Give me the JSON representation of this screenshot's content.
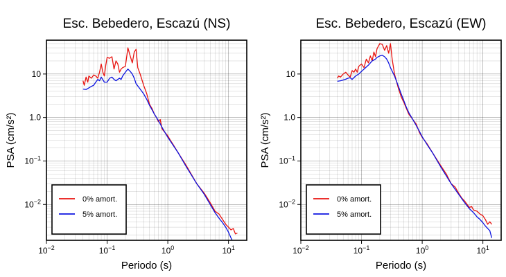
{
  "chart_data": [
    {
      "type": "line",
      "title": "Esc. Bebedero, Escazú (NS)",
      "xlabel": "Periodo (s)",
      "ylabel": "PSA (cm/s²)",
      "xscale": "log",
      "yscale": "log",
      "xlim": [
        0.01,
        20
      ],
      "ylim": [
        0.0015,
        60
      ],
      "grid": true,
      "legend_position": "bottom-left",
      "x_ticks": [
        {
          "value": 0.01,
          "base": "10",
          "exp": "−2"
        },
        {
          "value": 0.1,
          "base": "10",
          "exp": "−1"
        },
        {
          "value": 1,
          "base": "10",
          "exp": "0"
        },
        {
          "value": 10,
          "base": "10",
          "exp": "1"
        }
      ],
      "y_ticks": [
        {
          "value": 0.01,
          "base": "10",
          "exp": "−2"
        },
        {
          "value": 0.1,
          "base": "10",
          "exp": "−1"
        },
        {
          "value": 1,
          "base": "1.0",
          "exp": ""
        },
        {
          "value": 10,
          "base": "10",
          "exp": ""
        }
      ],
      "series": [
        {
          "name": "0% amort.",
          "color": "#e8130f",
          "points": [
            [
              0.04,
              7.0
            ],
            [
              0.042,
              5.5
            ],
            [
              0.045,
              8.5
            ],
            [
              0.048,
              6.5
            ],
            [
              0.05,
              9.0
            ],
            [
              0.055,
              8.0
            ],
            [
              0.06,
              9.5
            ],
            [
              0.065,
              9.0
            ],
            [
              0.07,
              8.0
            ],
            [
              0.075,
              11.0
            ],
            [
              0.08,
              17.0
            ],
            [
              0.085,
              11.0
            ],
            [
              0.09,
              9.0
            ],
            [
              0.095,
              16.0
            ],
            [
              0.1,
              24.0
            ],
            [
              0.11,
              23.0
            ],
            [
              0.12,
              25.0
            ],
            [
              0.13,
              13.0
            ],
            [
              0.14,
              20.0
            ],
            [
              0.15,
              17.0
            ],
            [
              0.16,
              11.0
            ],
            [
              0.17,
              13.0
            ],
            [
              0.18,
              14.0
            ],
            [
              0.2,
              15.0
            ],
            [
              0.22,
              40.0
            ],
            [
              0.24,
              26.0
            ],
            [
              0.26,
              18.0
            ],
            [
              0.28,
              32.0
            ],
            [
              0.3,
              37.0
            ],
            [
              0.32,
              14.0
            ],
            [
              0.35,
              10.0
            ],
            [
              0.4,
              5.5
            ],
            [
              0.45,
              3.5
            ],
            [
              0.5,
              2.0
            ],
            [
              0.55,
              1.6
            ],
            [
              0.6,
              1.2
            ],
            [
              0.65,
              1.0
            ],
            [
              0.7,
              0.8
            ],
            [
              0.75,
              0.9
            ],
            [
              0.8,
              0.55
            ],
            [
              0.9,
              0.45
            ],
            [
              1.0,
              0.38
            ],
            [
              1.1,
              0.3
            ],
            [
              1.2,
              0.25
            ],
            [
              1.5,
              0.15
            ],
            [
              2.0,
              0.08
            ],
            [
              3.0,
              0.03
            ],
            [
              4.0,
              0.018
            ],
            [
              5.0,
              0.011
            ],
            [
              6.0,
              0.007
            ],
            [
              7.0,
              0.006
            ],
            [
              8.0,
              0.0045
            ],
            [
              9.0,
              0.0035
            ],
            [
              10.0,
              0.003
            ],
            [
              11.0,
              0.0026
            ],
            [
              12.0,
              0.0028
            ],
            [
              13.0,
              0.0021
            ],
            [
              14.0,
              0.0022
            ]
          ]
        },
        {
          "name": "5% amort.",
          "color": "#0b12e0",
          "points": [
            [
              0.04,
              4.5
            ],
            [
              0.045,
              4.4
            ],
            [
              0.05,
              4.8
            ],
            [
              0.055,
              5.2
            ],
            [
              0.06,
              5.5
            ],
            [
              0.065,
              6.5
            ],
            [
              0.07,
              7.5
            ],
            [
              0.075,
              7.0
            ],
            [
              0.08,
              8.5
            ],
            [
              0.09,
              6.5
            ],
            [
              0.1,
              6.5
            ],
            [
              0.11,
              8.0
            ],
            [
              0.12,
              8.5
            ],
            [
              0.13,
              7.5
            ],
            [
              0.14,
              7.0
            ],
            [
              0.15,
              7.5
            ],
            [
              0.16,
              8.0
            ],
            [
              0.17,
              7.5
            ],
            [
              0.18,
              9.0
            ],
            [
              0.2,
              11.0
            ],
            [
              0.22,
              13.0
            ],
            [
              0.24,
              11.5
            ],
            [
              0.26,
              10.0
            ],
            [
              0.28,
              8.0
            ],
            [
              0.3,
              6.0
            ],
            [
              0.35,
              4.5
            ],
            [
              0.4,
              3.5
            ],
            [
              0.45,
              2.6
            ],
            [
              0.5,
              1.9
            ],
            [
              0.55,
              1.5
            ],
            [
              0.6,
              1.2
            ],
            [
              0.7,
              0.85
            ],
            [
              0.8,
              0.6
            ],
            [
              0.9,
              0.45
            ],
            [
              1.0,
              0.35
            ],
            [
              1.2,
              0.24
            ],
            [
              1.5,
              0.15
            ],
            [
              2.0,
              0.075
            ],
            [
              3.0,
              0.03
            ],
            [
              4.0,
              0.017
            ],
            [
              5.0,
              0.01
            ],
            [
              6.0,
              0.0065
            ],
            [
              7.0,
              0.0048
            ],
            [
              8.0,
              0.0038
            ],
            [
              9.0,
              0.003
            ],
            [
              10.0,
              0.0023
            ],
            [
              11.0,
              0.0017
            ],
            [
              11.5,
              0.0015
            ]
          ]
        }
      ]
    },
    {
      "type": "line",
      "title": "Esc. Bebedero, Escazú (EW)",
      "xlabel": "Periodo (s)",
      "ylabel": "PSA (cm/s²)",
      "xscale": "log",
      "yscale": "log",
      "xlim": [
        0.01,
        20
      ],
      "ylim": [
        0.0015,
        60
      ],
      "grid": true,
      "legend_position": "bottom-left",
      "x_ticks": [
        {
          "value": 0.01,
          "base": "10",
          "exp": "−2"
        },
        {
          "value": 0.1,
          "base": "10",
          "exp": "−1"
        },
        {
          "value": 1,
          "base": "10",
          "exp": "0"
        },
        {
          "value": 10,
          "base": "10",
          "exp": "1"
        }
      ],
      "y_ticks": [
        {
          "value": 0.01,
          "base": "10",
          "exp": "−2"
        },
        {
          "value": 0.1,
          "base": "10",
          "exp": "−1"
        },
        {
          "value": 1,
          "base": "1.0",
          "exp": ""
        },
        {
          "value": 10,
          "base": "10",
          "exp": ""
        }
      ],
      "series": [
        {
          "name": "0% amort.",
          "color": "#e8130f",
          "points": [
            [
              0.04,
              8.0
            ],
            [
              0.042,
              9.0
            ],
            [
              0.045,
              8.5
            ],
            [
              0.05,
              10.0
            ],
            [
              0.055,
              11.0
            ],
            [
              0.06,
              9.5
            ],
            [
              0.065,
              8.5
            ],
            [
              0.07,
              12.0
            ],
            [
              0.075,
              11.0
            ],
            [
              0.08,
              13.0
            ],
            [
              0.085,
              11.0
            ],
            [
              0.09,
              15.0
            ],
            [
              0.1,
              17.0
            ],
            [
              0.11,
              14.0
            ],
            [
              0.12,
              22.0
            ],
            [
              0.13,
              18.0
            ],
            [
              0.14,
              26.0
            ],
            [
              0.15,
              20.0
            ],
            [
              0.16,
              32.0
            ],
            [
              0.17,
              25.0
            ],
            [
              0.18,
              38.0
            ],
            [
              0.2,
              50.0
            ],
            [
              0.22,
              48.0
            ],
            [
              0.24,
              35.0
            ],
            [
              0.26,
              45.0
            ],
            [
              0.28,
              30.0
            ],
            [
              0.3,
              50.0
            ],
            [
              0.32,
              22.0
            ],
            [
              0.35,
              10.0
            ],
            [
              0.4,
              5.0
            ],
            [
              0.45,
              3.0
            ],
            [
              0.5,
              2.2
            ],
            [
              0.55,
              1.6
            ],
            [
              0.6,
              1.2
            ],
            [
              0.7,
              0.9
            ],
            [
              0.8,
              0.7
            ],
            [
              0.9,
              0.45
            ],
            [
              1.0,
              0.35
            ],
            [
              1.2,
              0.25
            ],
            [
              1.5,
              0.15
            ],
            [
              2.0,
              0.08
            ],
            [
              2.5,
              0.05
            ],
            [
              3.0,
              0.03
            ],
            [
              3.5,
              0.025
            ],
            [
              4.0,
              0.018
            ],
            [
              4.5,
              0.014
            ],
            [
              5.0,
              0.012
            ],
            [
              5.5,
              0.01
            ],
            [
              6.0,
              0.0085
            ],
            [
              6.5,
              0.009
            ],
            [
              7.0,
              0.0075
            ],
            [
              8.0,
              0.007
            ],
            [
              9.0,
              0.006
            ],
            [
              10.0,
              0.0055
            ],
            [
              11.0,
              0.0045
            ],
            [
              12.0,
              0.0035
            ],
            [
              13.0,
              0.004
            ],
            [
              14.0,
              0.0035
            ]
          ]
        },
        {
          "name": "5% amort.",
          "color": "#0b12e0",
          "points": [
            [
              0.04,
              6.8
            ],
            [
              0.045,
              7.0
            ],
            [
              0.05,
              7.3
            ],
            [
              0.055,
              7.6
            ],
            [
              0.06,
              8.0
            ],
            [
              0.065,
              8.2
            ],
            [
              0.07,
              7.5
            ],
            [
              0.08,
              9.0
            ],
            [
              0.09,
              10.0
            ],
            [
              0.1,
              11.5
            ],
            [
              0.11,
              13.0
            ],
            [
              0.12,
              14.5
            ],
            [
              0.13,
              16.0
            ],
            [
              0.14,
              18.0
            ],
            [
              0.15,
              20.0
            ],
            [
              0.16,
              21.0
            ],
            [
              0.17,
              22.0
            ],
            [
              0.18,
              24.0
            ],
            [
              0.2,
              26.0
            ],
            [
              0.22,
              27.0
            ],
            [
              0.24,
              25.0
            ],
            [
              0.26,
              22.0
            ],
            [
              0.28,
              18.0
            ],
            [
              0.3,
              14.0
            ],
            [
              0.35,
              9.0
            ],
            [
              0.4,
              5.5
            ],
            [
              0.45,
              3.5
            ],
            [
              0.5,
              2.4
            ],
            [
              0.55,
              1.7
            ],
            [
              0.6,
              1.3
            ],
            [
              0.7,
              0.9
            ],
            [
              0.8,
              0.65
            ],
            [
              0.9,
              0.48
            ],
            [
              1.0,
              0.36
            ],
            [
              1.2,
              0.24
            ],
            [
              1.5,
              0.15
            ],
            [
              2.0,
              0.075
            ],
            [
              3.0,
              0.03
            ],
            [
              4.0,
              0.017
            ],
            [
              5.0,
              0.011
            ],
            [
              6.0,
              0.008
            ],
            [
              7.0,
              0.0065
            ],
            [
              8.0,
              0.0052
            ],
            [
              9.0,
              0.0045
            ],
            [
              10.0,
              0.0038
            ],
            [
              11.0,
              0.0032
            ],
            [
              12.0,
              0.0028
            ],
            [
              13.0,
              0.0025
            ],
            [
              14.0,
              0.0017
            ]
          ]
        }
      ]
    }
  ]
}
